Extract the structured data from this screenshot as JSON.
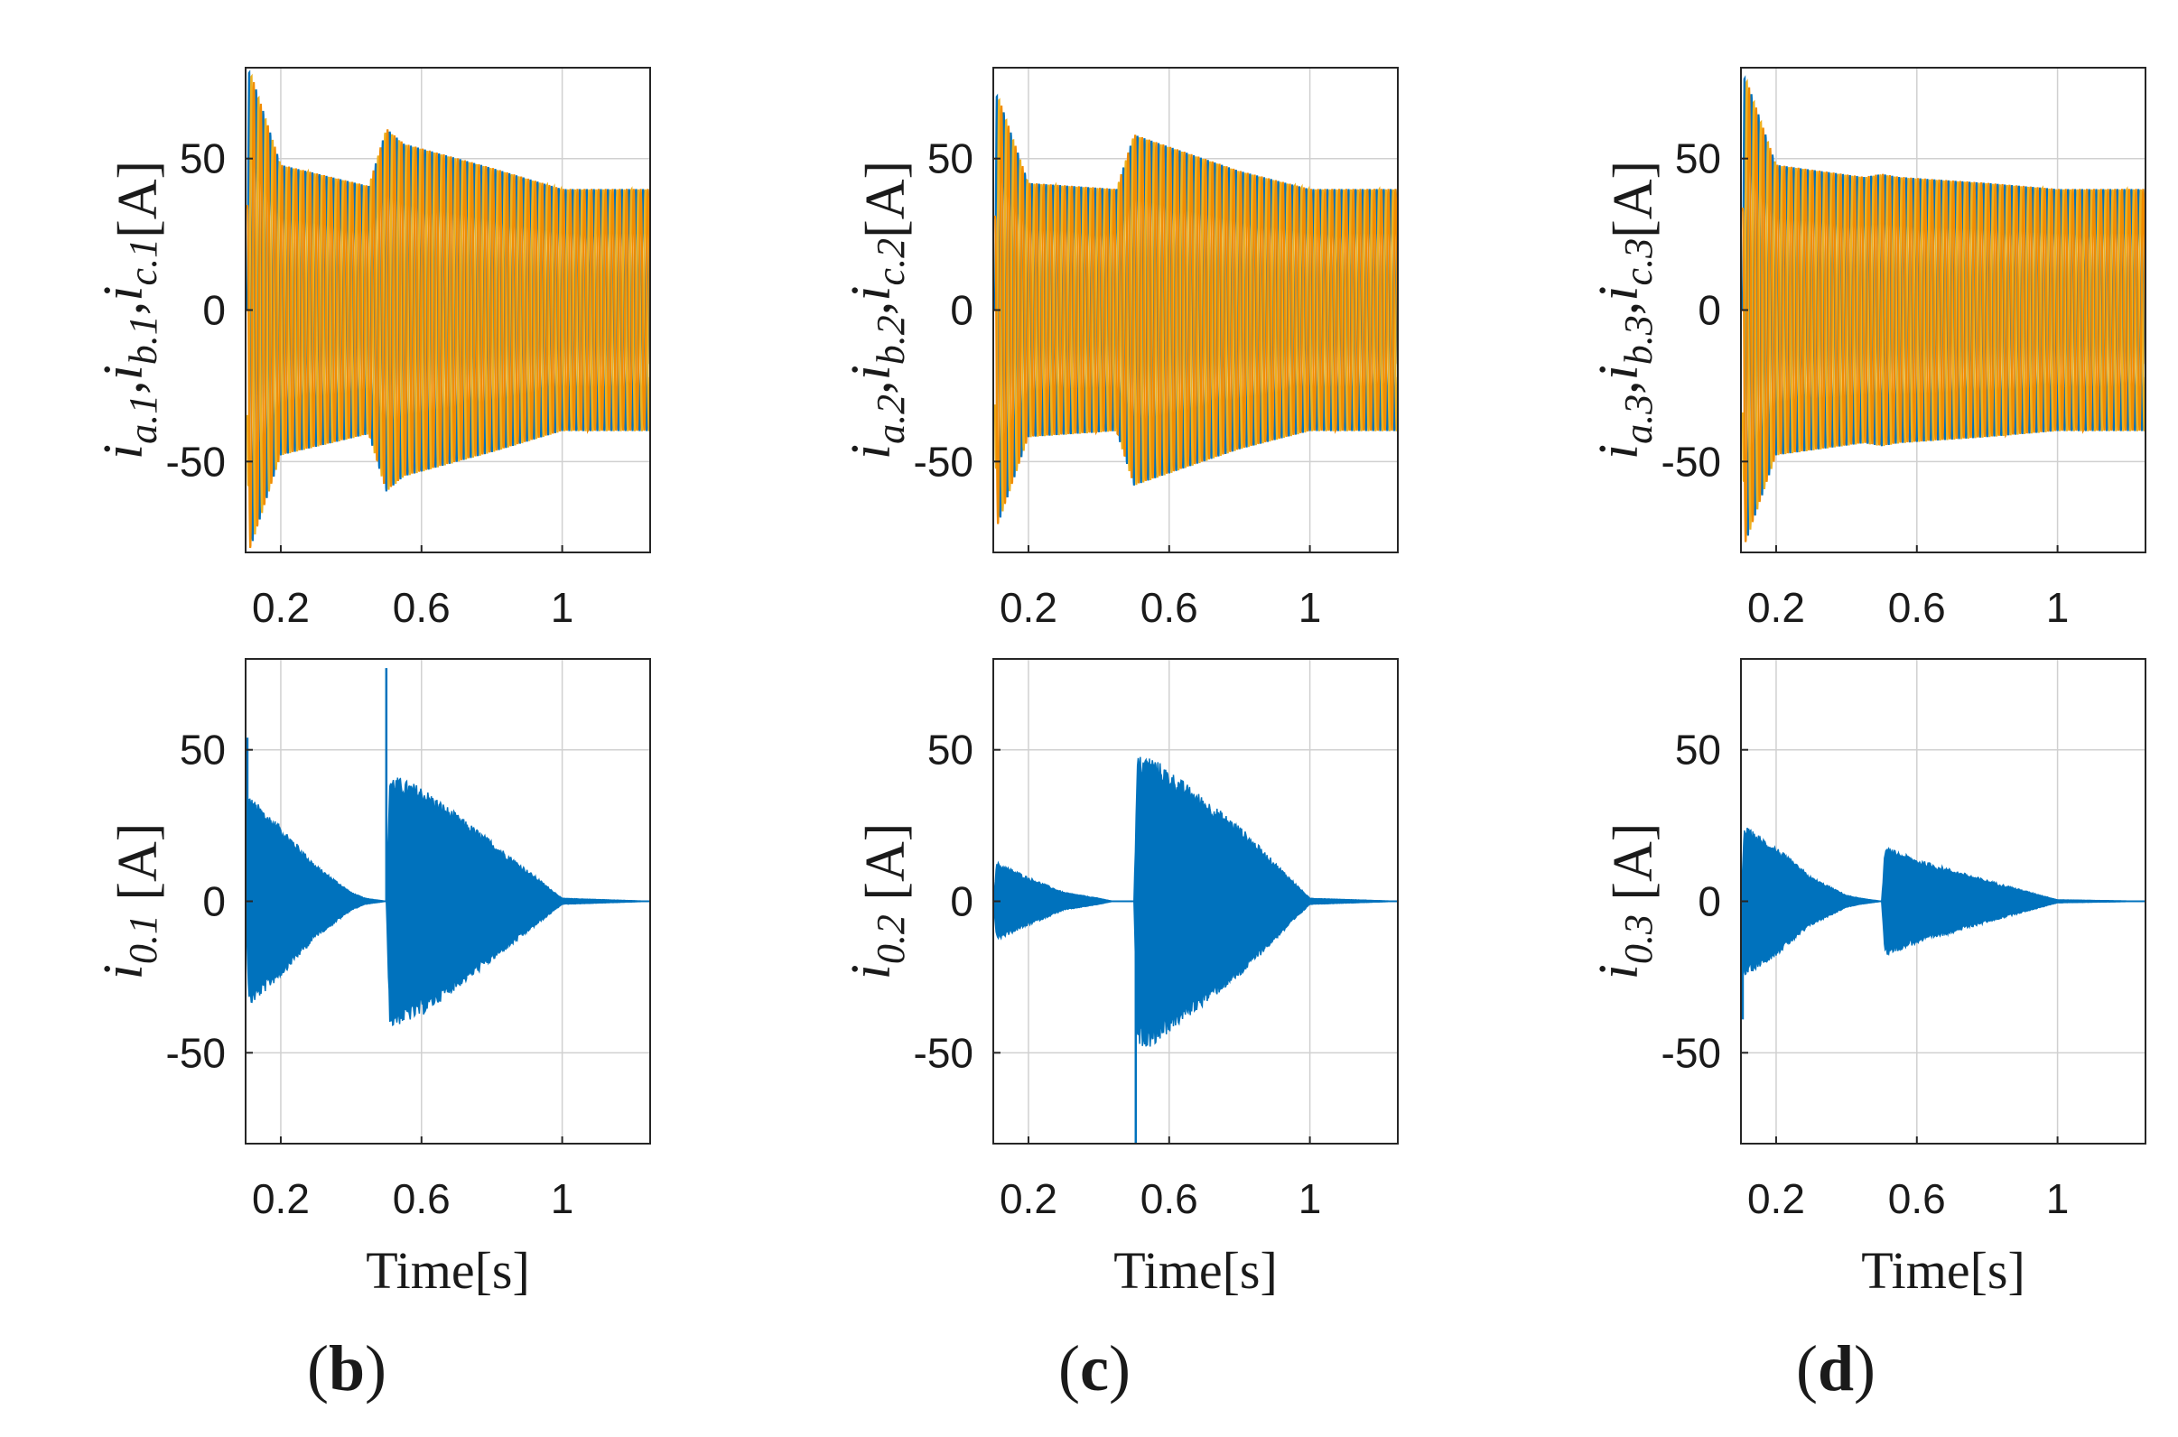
{
  "colors": {
    "phase_a": "#0072BD",
    "phase_b": "#EDB120",
    "phase_c": "#F28C00",
    "zero_seq": "#0072BD",
    "grid": "#d0d0d0",
    "axis": "#262626"
  },
  "chart_data": [
    {
      "id": "b1",
      "type": "line",
      "row": "top",
      "column": "b",
      "ylabel": {
        "base": "i",
        "subs": [
          "a.1",
          "b.1",
          "c.1"
        ],
        "unit": "[A]"
      },
      "xlabel": "",
      "xlim": [
        0.1,
        1.25
      ],
      "ylim": [
        -80,
        80
      ],
      "xticks": [
        0.2,
        0.6,
        1
      ],
      "xtick_labels": [
        "0.2",
        "0.6",
        "1"
      ],
      "yticks": [
        -50,
        0,
        50
      ],
      "ytick_labels": [
        "-50",
        "0",
        "50"
      ],
      "grid": true,
      "series": [
        {
          "kind": "three-phase",
          "x": [
            0.1,
            0.11,
            0.2,
            0.45,
            0.5,
            0.55,
            0.8,
            1.0,
            1.25
          ],
          "envelope": [
            0,
            80,
            48,
            41,
            60,
            55,
            47,
            40,
            40
          ]
        }
      ]
    },
    {
      "id": "c1",
      "type": "line",
      "row": "top",
      "column": "c",
      "ylabel": {
        "base": "i",
        "subs": [
          "a.2",
          "b.2",
          "c.2"
        ],
        "unit": "[A]"
      },
      "xlabel": "",
      "xlim": [
        0.1,
        1.25
      ],
      "ylim": [
        -80,
        80
      ],
      "xticks": [
        0.2,
        0.6,
        1
      ],
      "xtick_labels": [
        "0.2",
        "0.6",
        "1"
      ],
      "yticks": [
        -50,
        0,
        50
      ],
      "ytick_labels": [
        "-50",
        "0",
        "50"
      ],
      "grid": true,
      "series": [
        {
          "kind": "three-phase",
          "x": [
            0.1,
            0.11,
            0.2,
            0.45,
            0.5,
            0.55,
            0.8,
            1.0,
            1.25
          ],
          "envelope": [
            0,
            72,
            42,
            40,
            58,
            56,
            46,
            40,
            40
          ]
        }
      ]
    },
    {
      "id": "d1",
      "type": "line",
      "row": "top",
      "column": "d",
      "ylabel": {
        "base": "i",
        "subs": [
          "a.3",
          "b.3",
          "c.3"
        ],
        "unit": "[A]"
      },
      "xlabel": "",
      "xlim": [
        0.1,
        1.25
      ],
      "ylim": [
        -80,
        80
      ],
      "xticks": [
        0.2,
        0.6,
        1
      ],
      "xtick_labels": [
        "0.2",
        "0.6",
        "1"
      ],
      "yticks": [
        -50,
        0,
        50
      ],
      "ytick_labels": [
        "-50",
        "0",
        "50"
      ],
      "grid": true,
      "series": [
        {
          "kind": "three-phase",
          "x": [
            0.1,
            0.11,
            0.2,
            0.45,
            0.5,
            0.55,
            0.8,
            1.0,
            1.25
          ],
          "envelope": [
            0,
            78,
            48,
            44,
            45,
            44,
            42,
            40,
            40
          ]
        }
      ]
    },
    {
      "id": "b2",
      "type": "line",
      "row": "bottom",
      "column": "b",
      "ylabel": {
        "base": "i",
        "subs": [
          "0.1"
        ],
        "unit": "[A]"
      },
      "xlabel": "Time[s]",
      "xlim": [
        0.1,
        1.25
      ],
      "ylim": [
        -80,
        80
      ],
      "xticks": [
        0.2,
        0.6,
        1
      ],
      "xtick_labels": [
        "0.2",
        "0.6",
        "1"
      ],
      "yticks": [
        -50,
        0,
        50
      ],
      "ytick_labels": [
        "-50",
        "0",
        "50"
      ],
      "grid": true,
      "series": [
        {
          "kind": "zero-sequence",
          "x": [
            0.1,
            0.11,
            0.2,
            0.3,
            0.4,
            0.44,
            0.5,
            0.51,
            0.6,
            0.8,
            1.0,
            1.25
          ],
          "upper": [
            0,
            35,
            25,
            12,
            3,
            1,
            0,
            42,
            38,
            20,
            1,
            0
          ],
          "lower": [
            0,
            -35,
            -25,
            -12,
            -3,
            -1,
            0,
            -42,
            -38,
            -20,
            -1,
            0
          ],
          "spikes": [
            {
              "x": 0.105,
              "y": 54
            },
            {
              "x": 0.5,
              "y": 77
            }
          ]
        }
      ]
    },
    {
      "id": "c2",
      "type": "line",
      "row": "bottom",
      "column": "c",
      "ylabel": {
        "base": "i",
        "subs": [
          "0.2"
        ],
        "unit": "[A]"
      },
      "xlabel": "Time[s]",
      "xlim": [
        0.1,
        1.25
      ],
      "ylim": [
        -80,
        80
      ],
      "xticks": [
        0.2,
        0.6,
        1
      ],
      "xtick_labels": [
        "0.2",
        "0.6",
        "1"
      ],
      "yticks": [
        -50,
        0,
        50
      ],
      "ytick_labels": [
        "-50",
        "0",
        "50"
      ],
      "grid": true,
      "series": [
        {
          "kind": "zero-sequence",
          "x": [
            0.1,
            0.11,
            0.2,
            0.3,
            0.4,
            0.44,
            0.5,
            0.51,
            0.55,
            0.8,
            1.0,
            1.25
          ],
          "upper": [
            0,
            13,
            8,
            3,
            1,
            0,
            0,
            48,
            48,
            25,
            1,
            0
          ],
          "lower": [
            0,
            -13,
            -8,
            -3,
            -1,
            0,
            0,
            -48,
            -48,
            -25,
            -1,
            0
          ],
          "spikes": [
            {
              "x": 0.505,
              "y": -80
            }
          ]
        }
      ]
    },
    {
      "id": "d2",
      "type": "line",
      "row": "bottom",
      "column": "d",
      "ylabel": {
        "base": "i",
        "subs": [
          "0.3"
        ],
        "unit": "[A]"
      },
      "xlabel": "Time[s]",
      "xlim": [
        0.1,
        1.25
      ],
      "ylim": [
        -80,
        80
      ],
      "xticks": [
        0.2,
        0.6,
        1
      ],
      "xtick_labels": [
        "0.2",
        "0.6",
        "1"
      ],
      "yticks": [
        -50,
        0,
        50
      ],
      "ytick_labels": [
        "-50",
        "0",
        "50"
      ],
      "grid": true,
      "series": [
        {
          "kind": "zero-sequence",
          "x": [
            0.1,
            0.11,
            0.2,
            0.3,
            0.4,
            0.44,
            0.5,
            0.51,
            0.6,
            0.8,
            1.0,
            1.25
          ],
          "upper": [
            0,
            25,
            18,
            8,
            2,
            1,
            0,
            18,
            14,
            7,
            0.5,
            0
          ],
          "lower": [
            0,
            -25,
            -18,
            -8,
            -2,
            -1,
            0,
            -18,
            -14,
            -7,
            -0.5,
            0
          ],
          "spikes": [
            {
              "x": 0.105,
              "y": -39
            }
          ]
        }
      ]
    }
  ],
  "panel_labels": [
    {
      "column": "b",
      "letter": "b"
    },
    {
      "column": "c",
      "letter": "c"
    },
    {
      "column": "d",
      "letter": "d"
    }
  ]
}
